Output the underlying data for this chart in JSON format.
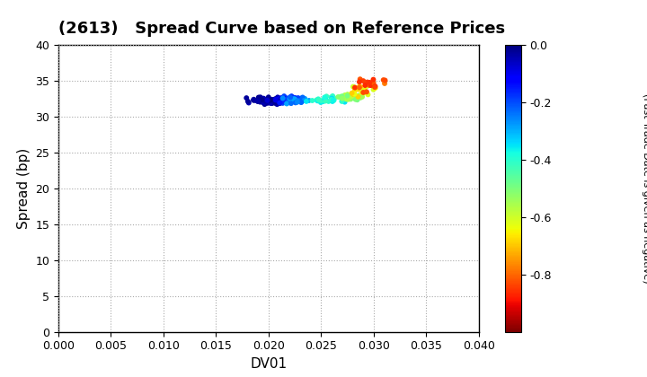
{
  "title": "(2613)   Spread Curve based on Reference Prices",
  "xlabel": "DV01",
  "ylabel": "Spread (bp)",
  "xlim": [
    0.0,
    0.04
  ],
  "ylim": [
    0,
    40
  ],
  "xticks": [
    0.0,
    0.005,
    0.01,
    0.015,
    0.02,
    0.025,
    0.03,
    0.035,
    0.04
  ],
  "yticks": [
    0,
    5,
    10,
    15,
    20,
    25,
    30,
    35,
    40
  ],
  "colorbar_ticks": [
    0.0,
    -0.2,
    -0.4,
    -0.6,
    -0.8
  ],
  "colormap": "jet_r",
  "clim_min": -1.0,
  "clim_max": 0.0,
  "background_color": "#ffffff",
  "title_fontsize": 13,
  "axis_fontsize": 11,
  "cbar_tick_fontsize": 9,
  "cbar_label_fontsize": 8,
  "marker_size": 18,
  "seed": 42
}
